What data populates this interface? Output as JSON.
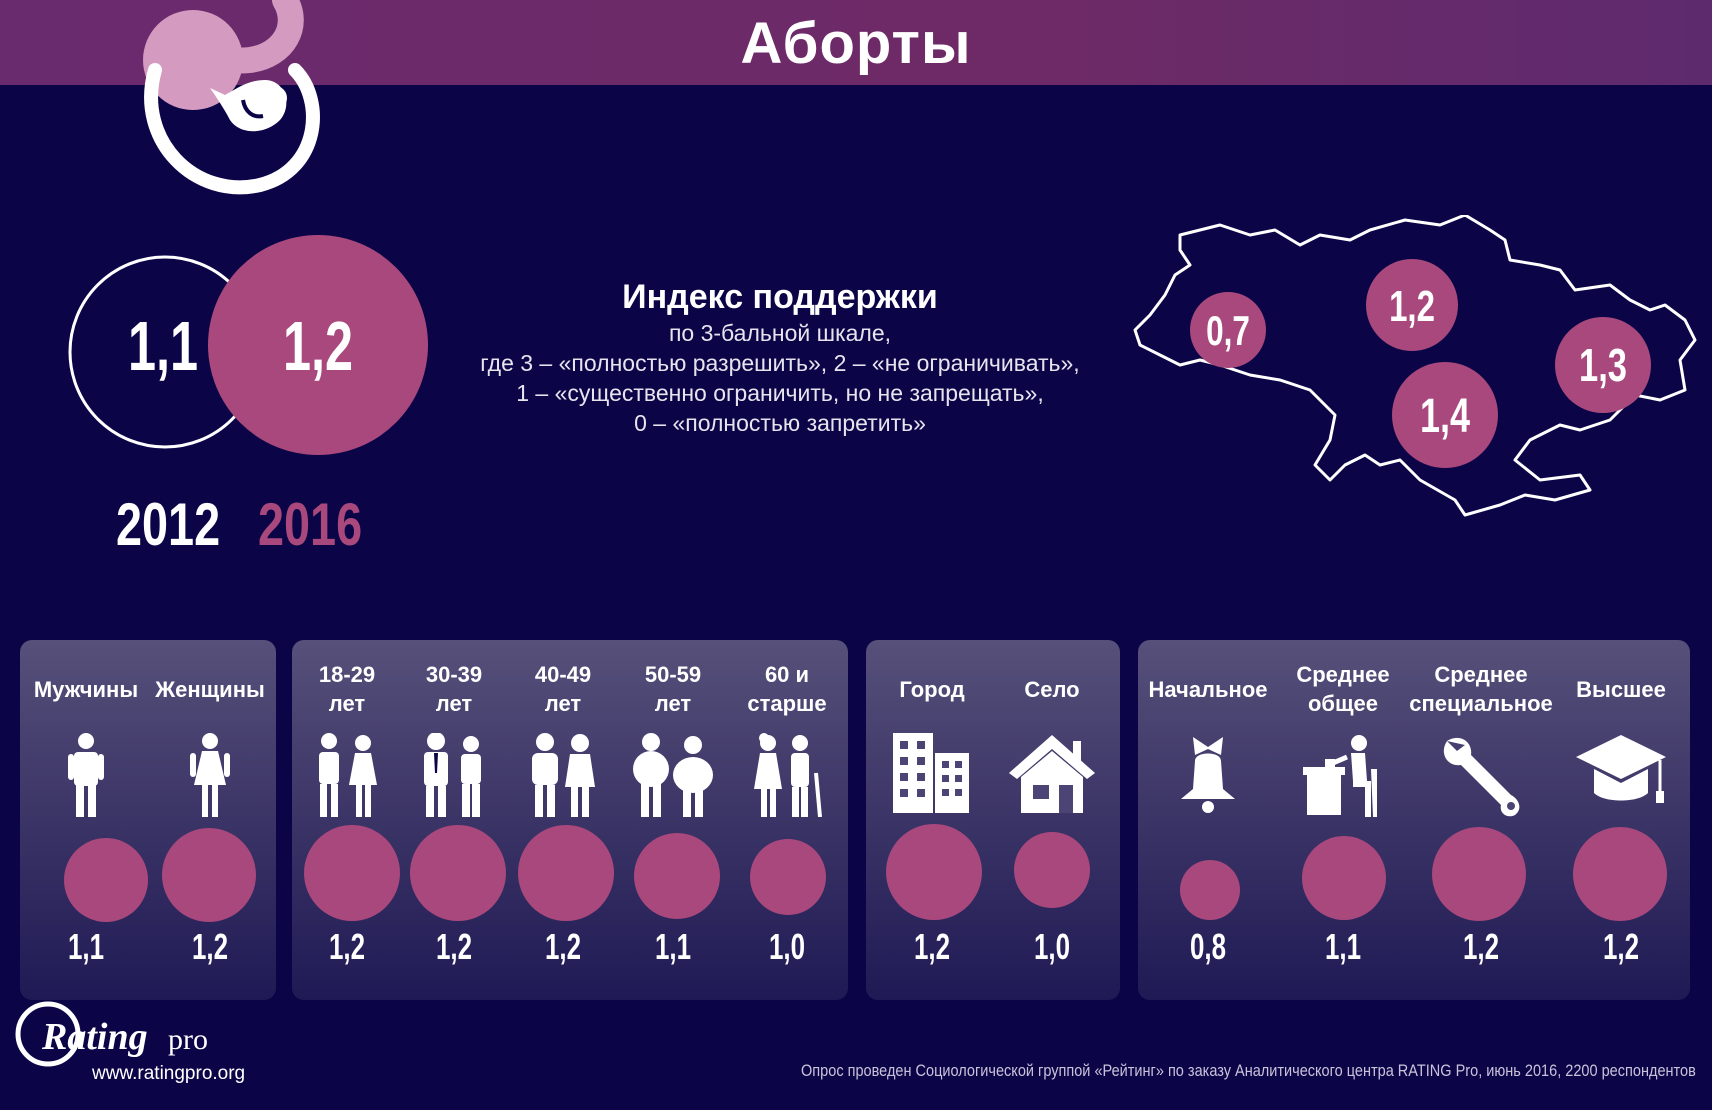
{
  "title": "Аборты",
  "overall": {
    "y2012_value": "1,1",
    "y2016_value": "1,2",
    "y2012_label": "2012",
    "y2016_label": "2016"
  },
  "index": {
    "title": "Индекс поддержки",
    "lines": [
      "по 3-бальной шкале,",
      "где 3 – «полностью разрешить», 2 – «не ограничивать»,",
      "1 – «существенно ограничить, но не запрещать»,",
      "0 – «полностью запретить»"
    ]
  },
  "regions": [
    {
      "value": "0,7"
    },
    {
      "value": "1,2"
    },
    {
      "value": "1,3"
    },
    {
      "value": "1,4"
    }
  ],
  "panels": [
    {
      "groups": [
        {
          "label": "Мужчины",
          "value": "1,1",
          "icon": "man-icon"
        },
        {
          "label": "Женщины",
          "value": "1,2",
          "icon": "woman-icon"
        }
      ]
    },
    {
      "groups": [
        {
          "label": "18-29 лет",
          "value": "1,2",
          "icon": "young-couple-icon"
        },
        {
          "label": "30-39 лет",
          "value": "1,2",
          "icon": "business-couple-icon"
        },
        {
          "label": "40-49 лет",
          "value": "1,2",
          "icon": "middle-couple-icon"
        },
        {
          "label": "50-59 лет",
          "value": "1,1",
          "icon": "heavy-couple-icon"
        },
        {
          "label": "60 и старше",
          "value": "1,0",
          "icon": "elderly-couple-icon"
        }
      ]
    },
    {
      "groups": [
        {
          "label": "Город",
          "value": "1,2",
          "icon": "city-building-icon"
        },
        {
          "label": "Село",
          "value": "1,0",
          "icon": "house-icon"
        }
      ]
    },
    {
      "groups": [
        {
          "label": "Начальное",
          "value": "0,8",
          "icon": "school-bell-icon"
        },
        {
          "label": "Среднее общее",
          "value": "1,1",
          "icon": "student-desk-icon"
        },
        {
          "label": "Среднее специальное",
          "value": "1,2",
          "icon": "wrench-icon"
        },
        {
          "label": "Высшее",
          "value": "1,2",
          "icon": "graduation-cap-icon"
        }
      ]
    }
  ],
  "logo": {
    "brand_main": "Rating",
    "brand_suffix": "pro",
    "url": "www.ratingpro.org"
  },
  "footer": "Опрос проведен Социологической группой «Рейтинг» по заказу Аналитического центра RATING Pro, июнь 2016, 2200 респондентов",
  "colors": {
    "background": "#0b0548",
    "accent": "#a9487c",
    "bar": "#6a2a6e"
  },
  "chart_data": [
    {
      "type": "bubble",
      "title": "Индекс поддержки",
      "categories": [
        "2012",
        "2016"
      ],
      "values": [
        1.1,
        1.2
      ]
    },
    {
      "type": "map",
      "values": [
        0.7,
        1.2,
        1.3,
        1.4
      ]
    },
    {
      "type": "bubble",
      "categories": [
        "Мужчины",
        "Женщины",
        "18-29 лет",
        "30-39 лет",
        "40-49 лет",
        "50-59 лет",
        "60 и старше",
        "Город",
        "Село",
        "Начальное",
        "Среднее общее",
        "Среднее специальное",
        "Высшее"
      ],
      "values": [
        1.1,
        1.2,
        1.2,
        1.2,
        1.2,
        1.1,
        1.0,
        1.2,
        1.0,
        0.8,
        1.1,
        1.2,
        1.2
      ]
    }
  ]
}
